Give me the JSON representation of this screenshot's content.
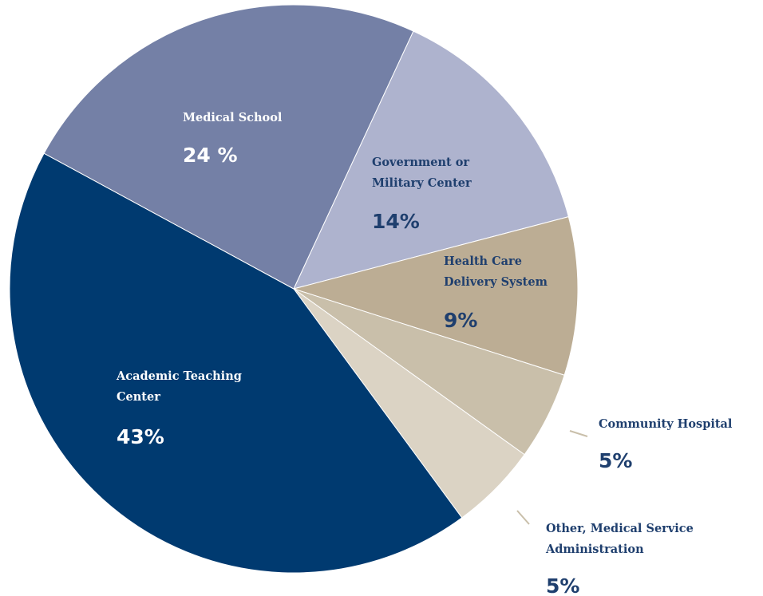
{
  "chart_data": {
    "type": "pie",
    "categories": [
      "Government or Military Center",
      "Health Care Delivery System",
      "Community Hospital",
      "Other, Medical Service Administration",
      "Academic Teaching Center",
      "Medical School"
    ],
    "values": [
      14,
      9,
      5,
      5,
      43,
      24
    ],
    "value_labels": [
      "14%",
      "9%",
      "5%",
      "5%",
      "43%",
      "24 %"
    ],
    "colors": [
      "#aeb3ce",
      "#bcad94",
      "#c9bfaa",
      "#dbd3c4",
      "#003a70",
      "#7480a6"
    ]
  }
}
